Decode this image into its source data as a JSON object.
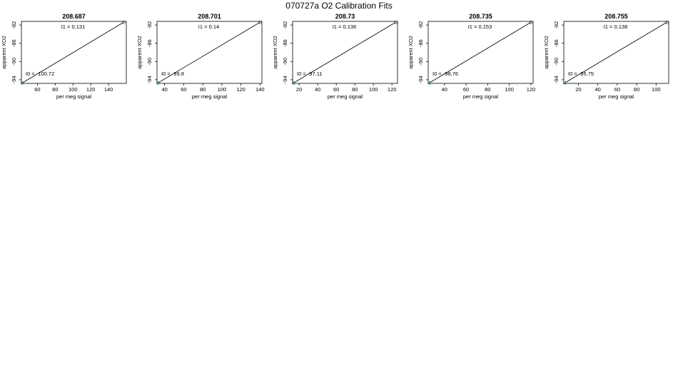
{
  "page": {
    "title": "070727a   O2 Calibration Fits"
  },
  "colors": {
    "fit_line": "#000000",
    "endpoint_marker": "#2e8b57",
    "frame": "#000000"
  },
  "chart_data": [
    {
      "type": "scatter",
      "title": "208.687",
      "xlabel": "per meg signal",
      "ylabel": "apparent XO2",
      "xticks": [
        60,
        80,
        100,
        120,
        140
      ],
      "yticks": [
        -82,
        -86,
        -90,
        -94
      ],
      "xlim": [
        42,
        160
      ],
      "ylim": [
        -94.8,
        -81.2
      ],
      "points": [
        {
          "x": 43,
          "y": -94.7
        },
        {
          "x": 157,
          "y": -81.4
        }
      ],
      "annotations": [
        {
          "label": "I1 =",
          "value": "0.131"
        },
        {
          "label": "I0 =",
          "value": "-100.72"
        }
      ]
    },
    {
      "type": "scatter",
      "title": "208.701",
      "xlabel": "per meg signal",
      "ylabel": "apparent XO2",
      "xticks": [
        40,
        60,
        80,
        100,
        120,
        140
      ],
      "yticks": [
        -82,
        -86,
        -90,
        -94
      ],
      "xlim": [
        32,
        142
      ],
      "ylim": [
        -94.8,
        -81.2
      ],
      "points": [
        {
          "x": 33,
          "y": -94.7
        },
        {
          "x": 140,
          "y": -81.4
        }
      ],
      "annotations": [
        {
          "label": "I1 =",
          "value": "0.14"
        },
        {
          "label": "I0 =",
          "value": "-99.8"
        }
      ]
    },
    {
      "type": "scatter",
      "title": "208.73",
      "xlabel": "per meg signal",
      "ylabel": "apparent XO2",
      "xticks": [
        20,
        40,
        60,
        80,
        100,
        120
      ],
      "yticks": [
        -82,
        -86,
        -90,
        -94
      ],
      "xlim": [
        13,
        126
      ],
      "ylim": [
        -94.8,
        -81.2
      ],
      "points": [
        {
          "x": 14,
          "y": -94.7
        },
        {
          "x": 124,
          "y": -81.4
        }
      ],
      "annotations": [
        {
          "label": "I1 =",
          "value": "0.136"
        },
        {
          "label": "I0 =",
          "value": "-97.11"
        }
      ]
    },
    {
      "type": "scatter",
      "title": "208.735",
      "xlabel": "per meg signal",
      "ylabel": "apparent XO2",
      "xticks": [
        40,
        60,
        80,
        100,
        120
      ],
      "yticks": [
        -82,
        -86,
        -90,
        -94
      ],
      "xlim": [
        25,
        122
      ],
      "ylim": [
        -94.8,
        -81.2
      ],
      "points": [
        {
          "x": 26,
          "y": -94.7
        },
        {
          "x": 120,
          "y": -81.4
        }
      ],
      "annotations": [
        {
          "label": "I1 =",
          "value": "0.153"
        },
        {
          "label": "I0 =",
          "value": "-98.76"
        }
      ]
    },
    {
      "type": "scatter",
      "title": "208.755",
      "xlabel": "per meg signal",
      "ylabel": "apparent XO2",
      "xticks": [
        20,
        40,
        60,
        80,
        100
      ],
      "yticks": [
        -82,
        -86,
        -90,
        -94
      ],
      "xlim": [
        5,
        113
      ],
      "ylim": [
        -94.8,
        -81.2
      ],
      "points": [
        {
          "x": 6,
          "y": -94.7
        },
        {
          "x": 111,
          "y": -81.4
        }
      ],
      "annotations": [
        {
          "label": "I1 =",
          "value": "0.138"
        },
        {
          "label": "I0 =",
          "value": "-95.75"
        }
      ]
    }
  ]
}
